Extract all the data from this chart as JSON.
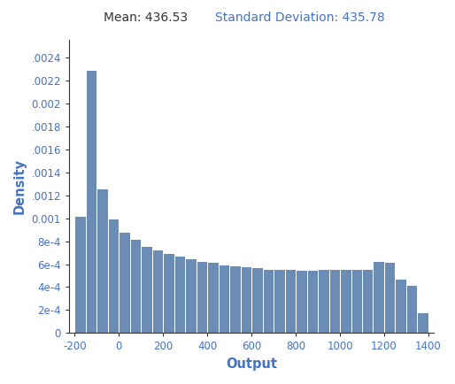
{
  "mean_label": "Mean: 436.53",
  "std_label": "Standard Deviation: 435.78",
  "xlabel": "Output",
  "ylabel": "Density",
  "bar_color": "#6B8DB5",
  "bar_edgecolor": "#ffffff",
  "background_color": "#ffffff",
  "xlim": [
    -225,
    1425
  ],
  "ylim": [
    0,
    0.00255
  ],
  "xticks": [
    -200,
    0,
    200,
    400,
    600,
    800,
    1000,
    1200,
    1400
  ],
  "yticks": [
    0,
    0.0002,
    0.0004,
    0.0006,
    0.0008,
    0.001,
    0.0012,
    0.0014,
    0.0016,
    0.0018,
    0.002,
    0.0022,
    0.0024
  ],
  "ytick_labels": [
    "0",
    "2e-4",
    "4e-4",
    "6e-4",
    "8e-4",
    "0.001",
    ".0012",
    ".0014",
    ".0016",
    ".0018",
    "0.002",
    ".0022",
    ".0024"
  ],
  "bin_left_edges": [
    -200,
    -150,
    -100,
    -50,
    0,
    50,
    100,
    150,
    200,
    250,
    300,
    350,
    400,
    450,
    500,
    550,
    600,
    650,
    700,
    750,
    800,
    850,
    900,
    950,
    1000,
    1050,
    1100,
    1150,
    1200,
    1250,
    1300,
    1350
  ],
  "bin_heights": [
    0.00102,
    0.00229,
    0.00126,
    0.001,
    0.00088,
    0.00082,
    0.00076,
    0.00073,
    0.0007,
    0.00067,
    0.00065,
    0.00063,
    0.00062,
    0.0006,
    0.00059,
    0.00058,
    0.00057,
    0.00056,
    0.00056,
    0.00056,
    0.00055,
    0.00055,
    0.00056,
    0.00056,
    0.00056,
    0.00056,
    0.00056,
    0.00063,
    0.00062,
    0.00047,
    0.00042,
    0.00018
  ],
  "bin_width": 50,
  "title_fontsize": 10,
  "axis_label_fontsize": 10.5,
  "tick_fontsize": 8.5,
  "mean_text_color": "#333333",
  "std_text_color": "#4472C4",
  "axis_color": "#4472C4",
  "spine_color": "#333333",
  "figwidth": 5.14,
  "figheight": 4.34,
  "dpi": 100
}
